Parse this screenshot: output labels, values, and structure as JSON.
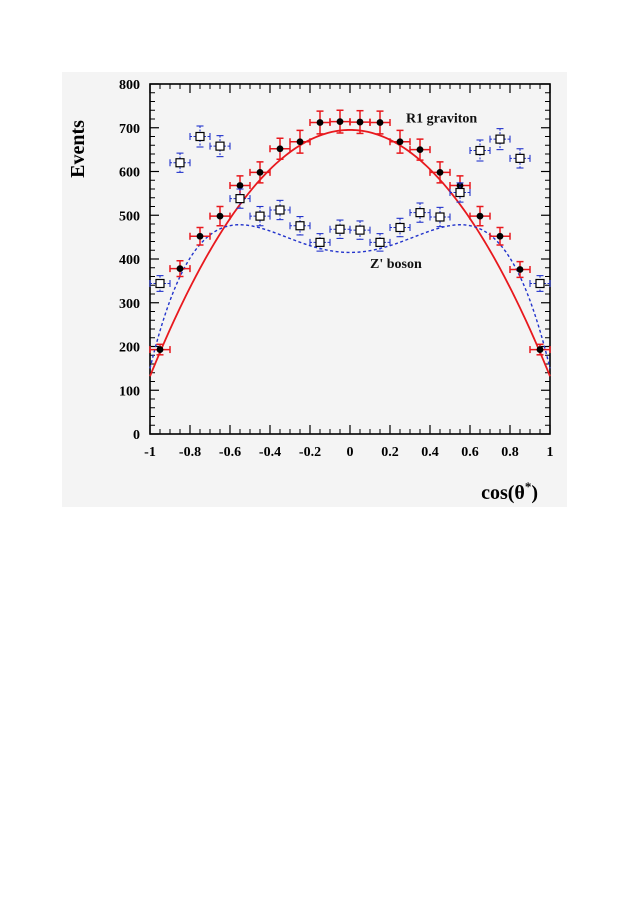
{
  "chart_data": {
    "type": "scatter",
    "title": "",
    "xlabel": "cos(θ*)",
    "ylabel": "Events",
    "xlim": [
      -1,
      1
    ],
    "ylim": [
      0,
      800
    ],
    "grid": false,
    "x_ticks": [
      -1,
      -0.8,
      -0.6,
      -0.4,
      -0.2,
      0,
      0.2,
      0.4,
      0.6,
      0.8,
      1
    ],
    "x_tick_labels": [
      "-1",
      "-0.8",
      "-0.6",
      "-0.4",
      "-0.2",
      "0",
      "0.2",
      "0.4",
      "0.6",
      "0.8",
      "1"
    ],
    "y_ticks": [
      0,
      100,
      200,
      300,
      400,
      500,
      600,
      700,
      800
    ],
    "y_tick_labels": [
      "0",
      "100",
      "200",
      "300",
      "400",
      "500",
      "600",
      "700",
      "800"
    ],
    "annotations": [
      {
        "text": "R1 graviton",
        "x": 0.28,
        "y": 712
      },
      {
        "text": "Z' boson",
        "x": 0.1,
        "y": 380
      }
    ],
    "series": [
      {
        "name": "R1 graviton",
        "marker": "filled-circle",
        "color": "#e8191e",
        "x": [
          -0.95,
          -0.85,
          -0.75,
          -0.65,
          -0.55,
          -0.45,
          -0.35,
          -0.25,
          -0.15,
          -0.05,
          0.05,
          0.15,
          0.25,
          0.35,
          0.45,
          0.55,
          0.65,
          0.75,
          0.85,
          0.95
        ],
        "y": [
          193,
          378,
          452,
          498,
          568,
          598,
          652,
          668,
          712,
          714,
          713,
          712,
          668,
          650,
          598,
          568,
          498,
          452,
          376,
          193
        ],
        "y_err": [
          12,
          18,
          20,
          22,
          22,
          24,
          24,
          26,
          26,
          26,
          26,
          26,
          26,
          24,
          24,
          22,
          22,
          20,
          18,
          12
        ],
        "x_err": 0.05
      },
      {
        "name": "Z' boson",
        "marker": "open-square",
        "color": "#2233cc",
        "x": [
          -0.95,
          -0.85,
          -0.75,
          -0.65,
          -0.55,
          -0.45,
          -0.35,
          -0.25,
          -0.15,
          -0.05,
          0.05,
          0.15,
          0.25,
          0.35,
          0.45,
          0.55,
          0.65,
          0.75,
          0.85,
          0.95
        ],
        "y": [
          344,
          620,
          680,
          658,
          538,
          498,
          512,
          476,
          438,
          468,
          466,
          438,
          472,
          506,
          496,
          552,
          648,
          674,
          630,
          344
        ],
        "y_err": [
          18,
          22,
          24,
          24,
          22,
          22,
          22,
          21,
          20,
          21,
          21,
          20,
          21,
          22,
          22,
          22,
          24,
          24,
          22,
          18
        ],
        "x_err": 0.05
      }
    ],
    "fits": [
      {
        "name": "R1 graviton",
        "style": "solid",
        "color": "#e8191e",
        "form": "a*(1 - b*x^2)",
        "a": 695,
        "b": 0.81
      },
      {
        "name": "Z' boson",
        "style": "dashed",
        "color": "#2233cc",
        "form": "a*(1 + x^2) - c*x^4",
        "a": 415,
        "c": 680
      }
    ]
  }
}
